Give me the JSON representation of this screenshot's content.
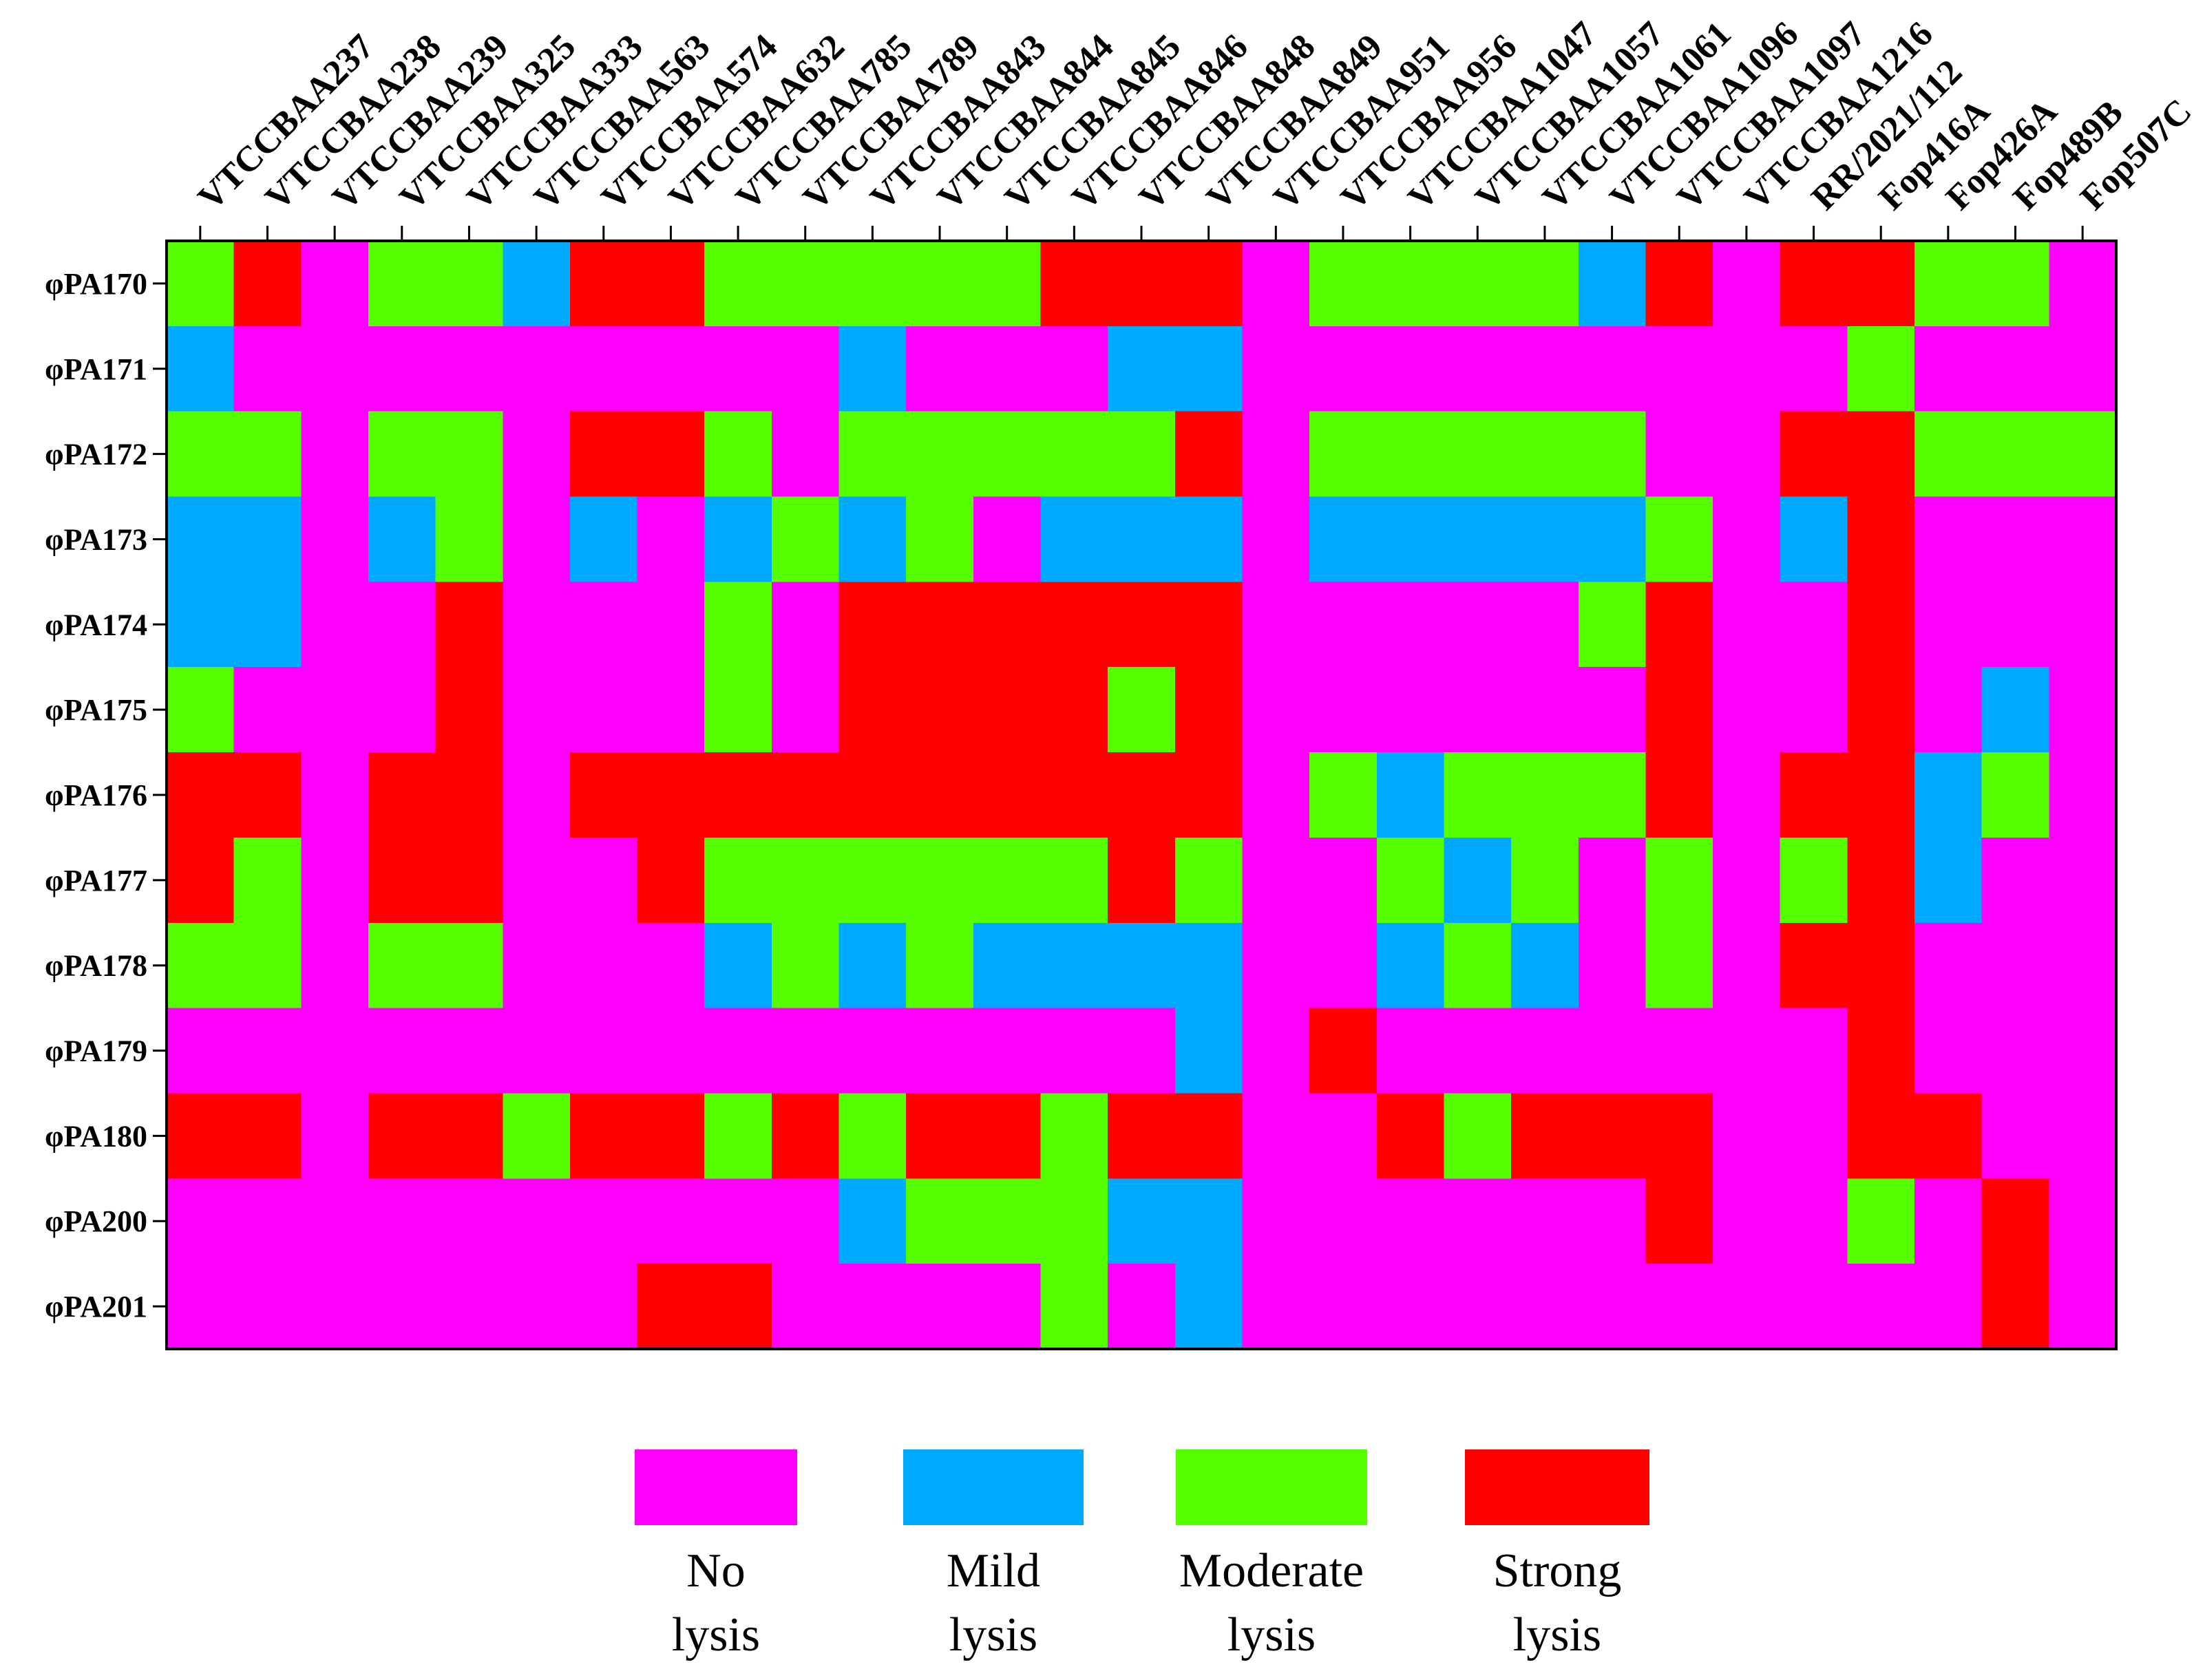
{
  "chart_data": {
    "type": "heatmap",
    "title": "",
    "columns": [
      "VTCCBAA237",
      "VTCCBAA238",
      "VTCCBAA239",
      "VTCCBAA325",
      "VTCCBAA333",
      "VTCCBAA563",
      "VTCCBAA574",
      "VTCCBAA632",
      "VTCCBAA785",
      "VTCCBAA789",
      "VTCCBAA843",
      "VTCCBAA844",
      "VTCCBAA845",
      "VTCCBAA846",
      "VTCCBAA848",
      "VTCCBAA849",
      "VTCCBAA951",
      "VTCCBAA956",
      "VTCCBAA1047",
      "VTCCBAA1057",
      "VTCCBAA1061",
      "VTCCBAA1096",
      "VTCCBAA1097",
      "VTCCBAA1216",
      "RR/2021/112",
      "Fop416A",
      "Fop426A",
      "Fop489B",
      "Fop507C"
    ],
    "rows": [
      "φPA170",
      "φPA171",
      "φPA172",
      "φPA173",
      "φPA174",
      "φPA175",
      "φPA176",
      "φPA177",
      "φPA178",
      "φPA179",
      "φPA180",
      "φPA200",
      "φPA201"
    ],
    "scale_note": "0 = No lysis, 1 = Mild lysis, 2 = Moderate lysis, 3 = Strong lysis",
    "values": [
      [
        2,
        3,
        0,
        2,
        2,
        1,
        3,
        3,
        2,
        2,
        2,
        2,
        2,
        3,
        3,
        3,
        0,
        2,
        2,
        2,
        2,
        1,
        3,
        0,
        3,
        3,
        2,
        2,
        0
      ],
      [
        1,
        0,
        0,
        0,
        0,
        0,
        0,
        0,
        0,
        0,
        1,
        0,
        0,
        0,
        1,
        1,
        0,
        0,
        0,
        0,
        0,
        0,
        0,
        0,
        0,
        2,
        0,
        0,
        0
      ],
      [
        2,
        2,
        0,
        2,
        2,
        0,
        3,
        3,
        2,
        0,
        2,
        2,
        2,
        2,
        2,
        3,
        0,
        2,
        2,
        2,
        2,
        2,
        0,
        0,
        3,
        3,
        2,
        2,
        2
      ],
      [
        1,
        1,
        0,
        1,
        2,
        0,
        1,
        0,
        1,
        2,
        1,
        2,
        0,
        1,
        1,
        1,
        0,
        1,
        1,
        1,
        1,
        1,
        2,
        0,
        1,
        3,
        0,
        0,
        0
      ],
      [
        1,
        1,
        0,
        0,
        3,
        0,
        0,
        0,
        2,
        0,
        3,
        3,
        3,
        3,
        3,
        3,
        0,
        0,
        0,
        0,
        0,
        2,
        3,
        0,
        0,
        3,
        0,
        0,
        0
      ],
      [
        2,
        0,
        0,
        0,
        3,
        0,
        0,
        0,
        2,
        0,
        3,
        3,
        3,
        3,
        2,
        3,
        0,
        0,
        0,
        0,
        0,
        0,
        3,
        0,
        0,
        3,
        0,
        1,
        0
      ],
      [
        3,
        3,
        0,
        3,
        3,
        0,
        3,
        3,
        3,
        3,
        3,
        3,
        3,
        3,
        3,
        3,
        0,
        2,
        1,
        2,
        2,
        2,
        3,
        0,
        3,
        3,
        1,
        2,
        0
      ],
      [
        3,
        2,
        0,
        3,
        3,
        0,
        0,
        3,
        2,
        2,
        2,
        2,
        2,
        2,
        3,
        2,
        0,
        0,
        2,
        1,
        2,
        0,
        2,
        0,
        2,
        3,
        1,
        0,
        0
      ],
      [
        2,
        2,
        0,
        2,
        2,
        0,
        0,
        0,
        1,
        2,
        1,
        2,
        1,
        1,
        1,
        1,
        0,
        0,
        1,
        2,
        1,
        0,
        2,
        0,
        3,
        3,
        0,
        0,
        0
      ],
      [
        0,
        0,
        0,
        0,
        0,
        0,
        0,
        0,
        0,
        0,
        0,
        0,
        0,
        0,
        0,
        1,
        0,
        3,
        0,
        0,
        0,
        0,
        0,
        0,
        0,
        3,
        0,
        0,
        0
      ],
      [
        3,
        3,
        0,
        3,
        3,
        2,
        3,
        3,
        2,
        3,
        2,
        3,
        3,
        2,
        3,
        3,
        0,
        0,
        3,
        2,
        3,
        3,
        3,
        0,
        0,
        3,
        3,
        0,
        0
      ],
      [
        0,
        0,
        0,
        0,
        0,
        0,
        0,
        0,
        0,
        0,
        1,
        2,
        2,
        2,
        1,
        1,
        0,
        0,
        0,
        0,
        0,
        0,
        3,
        0,
        0,
        2,
        0,
        3,
        0
      ],
      [
        0,
        0,
        0,
        0,
        0,
        0,
        0,
        3,
        3,
        0,
        0,
        0,
        0,
        2,
        0,
        1,
        0,
        0,
        0,
        0,
        0,
        0,
        0,
        0,
        0,
        0,
        0,
        3,
        0
      ]
    ],
    "legend": [
      {
        "value": 0,
        "line1": "No",
        "line2": "lysis",
        "color": "#ff00ff"
      },
      {
        "value": 1,
        "line1": "Mild",
        "line2": "lysis",
        "color": "#00aaff"
      },
      {
        "value": 2,
        "line1": "Moderate",
        "line2": "lysis",
        "color": "#55ff00"
      },
      {
        "value": 3,
        "line1": "Strong",
        "line2": "lysis",
        "color": "#ff0000"
      }
    ],
    "legend_position": "bottom-center"
  }
}
